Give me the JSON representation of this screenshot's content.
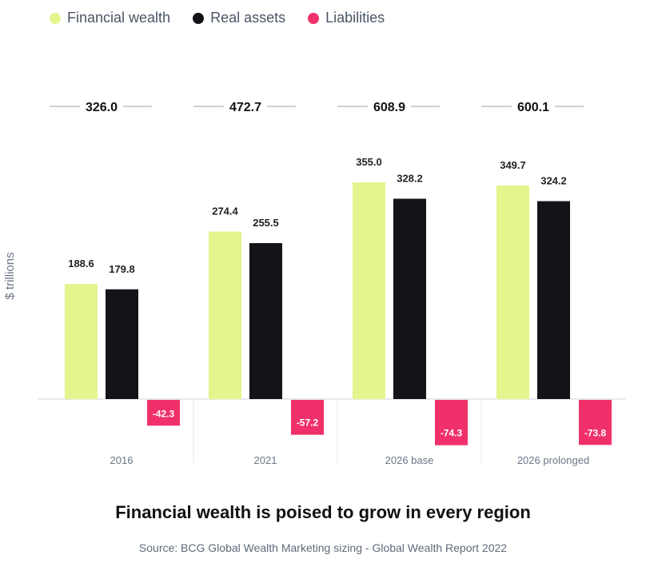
{
  "legend": [
    {
      "label": "Financial wealth",
      "color": "#e3f58c"
    },
    {
      "label": "Real assets",
      "color": "#141418"
    },
    {
      "label": "Liabilities",
      "color": "#f0306a"
    }
  ],
  "chart_data": {
    "type": "bar",
    "categories": [
      "2016",
      "2021",
      "2026 base",
      "2026 prolonged"
    ],
    "series": [
      {
        "name": "Financial wealth",
        "values": [
          188.6,
          274.4,
          355.0,
          349.7
        ]
      },
      {
        "name": "Real assets",
        "values": [
          179.8,
          255.5,
          328.2,
          324.2
        ]
      },
      {
        "name": "Liabilities",
        "values": [
          -42.3,
          -57.2,
          -74.3,
          -73.8
        ]
      }
    ],
    "totals": [
      "326.0",
      "472.7",
      "608.9",
      "600.1"
    ],
    "value_labels": [
      [
        "188.6",
        "274.4",
        "355.0",
        "349.7"
      ],
      [
        "179.8",
        "255.5",
        "328.2",
        "324.2"
      ],
      [
        "-42.3",
        "-57.2",
        "-74.3",
        "-73.8"
      ]
    ],
    "ylabel": "$ trillions",
    "legend_position": "top-left",
    "grid": false
  },
  "title": "Financial wealth is poised to grow in every region",
  "source": "Source: BCG Global Wealth Marketing sizing - Global Wealth Report 2022"
}
